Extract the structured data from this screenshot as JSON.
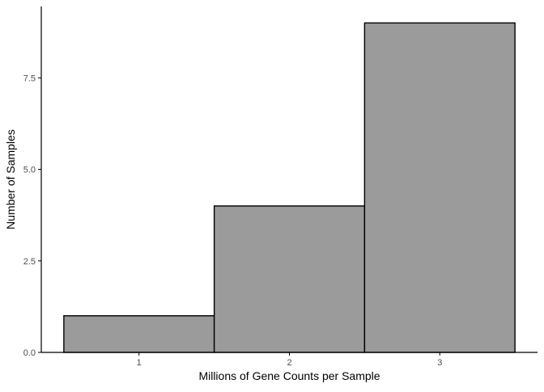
{
  "chart_data": {
    "type": "bar",
    "subtype": "histogram",
    "title": "",
    "xlabel": "Millions of Gene Counts per Sample",
    "ylabel": "Number of Samples",
    "bins": [
      {
        "x0": 0.5,
        "x1": 1.5,
        "count": 1
      },
      {
        "x0": 1.5,
        "x1": 2.5,
        "count": 4
      },
      {
        "x0": 2.5,
        "x1": 3.5,
        "count": 9
      }
    ],
    "xlim": [
      0.35,
      3.65
    ],
    "ylim": [
      0,
      9.45
    ],
    "x_ticks": [
      1,
      2,
      3
    ],
    "x_tick_labels": [
      "1",
      "2",
      "3"
    ],
    "y_ticks": [
      0,
      2.5,
      5,
      7.5
    ],
    "y_tick_labels": [
      "0.0",
      "2.5",
      "5.0",
      "7.5"
    ],
    "grid": false,
    "legend": "none",
    "colors": {
      "bar_fill": "#9b9b9b",
      "bar_stroke": "#000000",
      "axis": "#000000",
      "tick_text": "#4d4d4d",
      "background": "#ffffff"
    }
  }
}
